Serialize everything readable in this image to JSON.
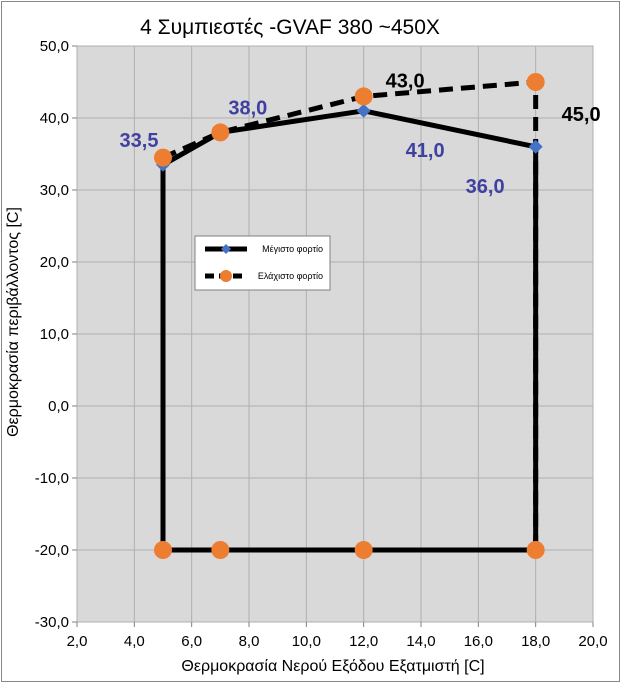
{
  "chart_data": {
    "type": "line",
    "title": "4 Συμπιεστές -GVAF 380 ~450X",
    "xlabel": "Θερμοκρασία Νερού Εξόδου Εξατμιστή [C]",
    "ylabel": "Θερμοκρασία περιβάλλοντος [C]",
    "xlim": [
      2,
      20
    ],
    "ylim": [
      -30,
      50
    ],
    "x_ticks": [
      "2,0",
      "4,0",
      "6,0",
      "8,0",
      "10,0",
      "12,0",
      "14,0",
      "16,0",
      "18,0",
      "20,0"
    ],
    "y_ticks": [
      "50,0",
      "40,0",
      "30,0",
      "20,0",
      "10,0",
      "0,0",
      "-10,0",
      "-20,0",
      "-30,0"
    ],
    "grid": true,
    "legend_position": "center-left",
    "series": [
      {
        "name": "Μέγιστο φορτίο",
        "line_style": "solid",
        "marker": "diamond",
        "color": "#4472C4",
        "line_color": "#000000",
        "points": [
          [
            5,
            33.5
          ],
          [
            7,
            38
          ],
          [
            12,
            41
          ],
          [
            18,
            36
          ],
          [
            18,
            -20
          ],
          [
            12,
            -20
          ],
          [
            7,
            -20
          ],
          [
            5,
            -20
          ],
          [
            5,
            33.5
          ]
        ]
      },
      {
        "name": "Ελάχιστο φορτίο",
        "line_style": "dashed",
        "marker": "circle",
        "color": "#ED7D31",
        "line_color": "#000000",
        "points": [
          [
            5,
            34.5
          ],
          [
            7,
            38
          ],
          [
            12,
            43
          ],
          [
            18,
            45
          ],
          [
            18,
            -20
          ],
          [
            12,
            -20
          ],
          [
            7,
            -20
          ],
          [
            5,
            -20
          ],
          [
            5,
            34.5
          ]
        ]
      }
    ],
    "data_labels": [
      {
        "text": "33,5",
        "x": 5,
        "y": 33.5,
        "color": "#4040A0"
      },
      {
        "text": "38,0",
        "x": 7,
        "y": 38,
        "color": "#4040A0"
      },
      {
        "text": "41,0",
        "x": 12,
        "y": 41,
        "color": "#4040A0"
      },
      {
        "text": "36,0",
        "x": 18,
        "y": 36,
        "color": "#4040A0"
      },
      {
        "text": "43,0",
        "x": 12,
        "y": 43,
        "color": "#000000"
      },
      {
        "text": "45,0",
        "x": 18,
        "y": 45,
        "color": "#000000"
      }
    ],
    "plot_background": "#D9D9D9",
    "grid_color": "#B0B0B0"
  }
}
